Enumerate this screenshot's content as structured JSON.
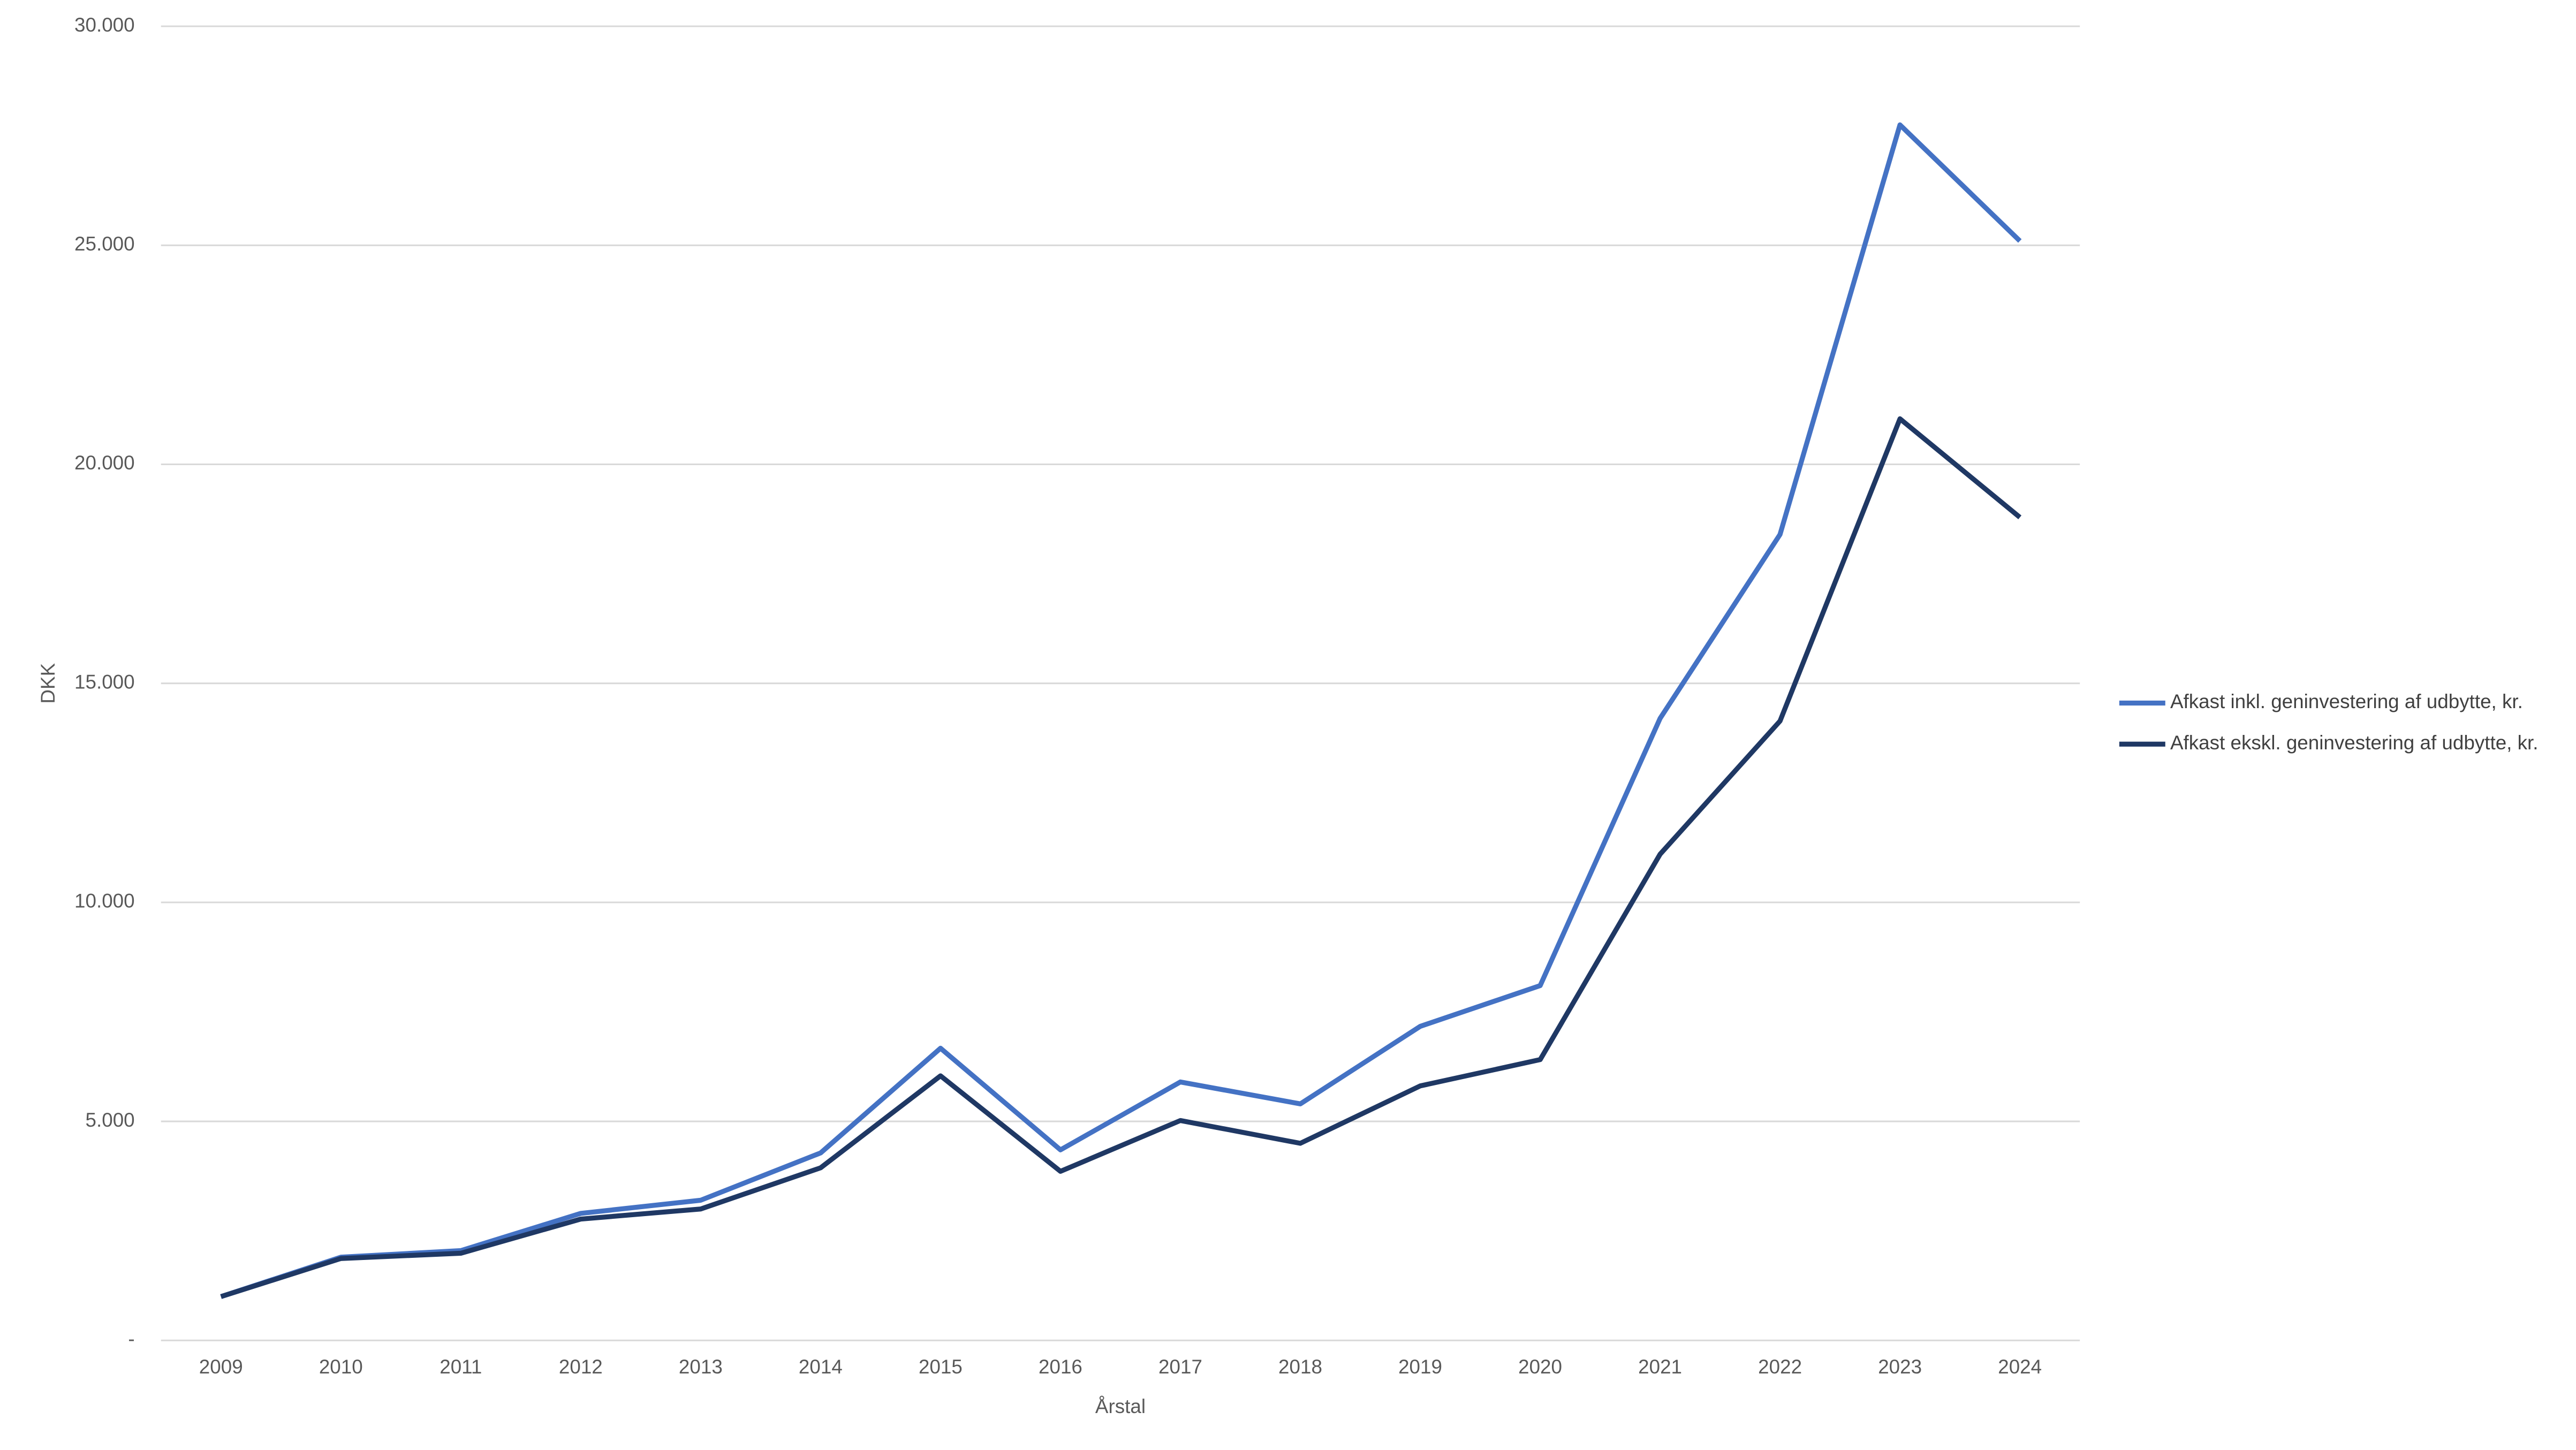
{
  "chart_data": {
    "type": "line",
    "x_label": "Årstal",
    "y_label": "DKK",
    "categories": [
      "2009",
      "2010",
      "2011",
      "2012",
      "2013",
      "2014",
      "2015",
      "2016",
      "2017",
      "2018",
      "2019",
      "2020",
      "2021",
      "2022",
      "2023",
      "2024"
    ],
    "series": [
      {
        "name": "Afkast inkl. geninvestering af udbytte, kr.",
        "color": "#4472c4",
        "values": [
          1000,
          1900,
          2050,
          2900,
          3200,
          4280,
          6670,
          4350,
          5900,
          5400,
          7170,
          8100,
          14200,
          18400,
          27750,
          25100
        ]
      },
      {
        "name": "Afkast ekskl. geninvestering af udbytte, kr.",
        "color": "#1f3864",
        "values": [
          1000,
          1870,
          1990,
          2770,
          3000,
          3940,
          6040,
          3860,
          5020,
          4500,
          5810,
          6410,
          11100,
          14140,
          21040,
          18790
        ]
      }
    ],
    "ylim": [
      0,
      30000
    ],
    "yticks": [
      {
        "value": 0,
        "label": "-"
      },
      {
        "value": 5000,
        "label": "5.000"
      },
      {
        "value": 10000,
        "label": "10.000"
      },
      {
        "value": 15000,
        "label": "15.000"
      },
      {
        "value": 20000,
        "label": "20.000"
      },
      {
        "value": 25000,
        "label": "25.000"
      },
      {
        "value": 30000,
        "label": "30.000"
      }
    ],
    "grid": true,
    "legend": "right"
  }
}
